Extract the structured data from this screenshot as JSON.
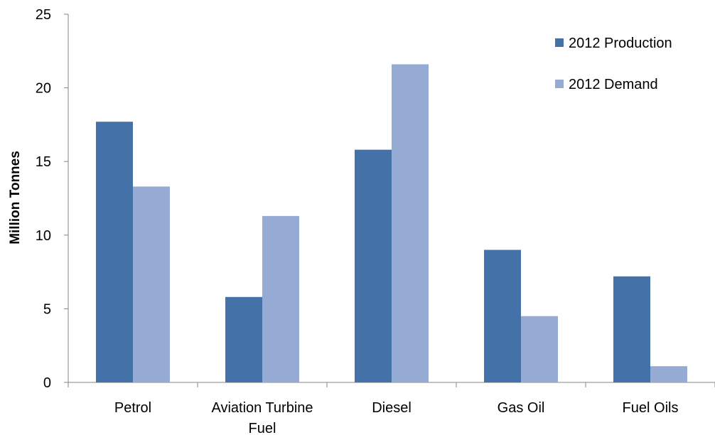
{
  "chart_data": {
    "type": "bar",
    "title": "",
    "xlabel": "",
    "ylabel": "Million Tonnes",
    "ylim": [
      0,
      25
    ],
    "yticks": [
      0,
      5,
      10,
      15,
      20,
      25
    ],
    "categories": [
      [
        "Petrol"
      ],
      [
        "Aviation Turbine",
        "Fuel"
      ],
      [
        "Diesel"
      ],
      [
        "Gas Oil"
      ],
      [
        "Fuel Oils"
      ]
    ],
    "series": [
      {
        "name": "2012 Production",
        "color": "#4472A8",
        "values": [
          17.7,
          5.8,
          15.8,
          9.0,
          7.2
        ]
      },
      {
        "name": "2012 Demand",
        "color": "#95ABD3",
        "values": [
          13.3,
          11.3,
          21.6,
          4.5,
          1.1
        ]
      }
    ],
    "grid": false,
    "legend": "top-right"
  }
}
